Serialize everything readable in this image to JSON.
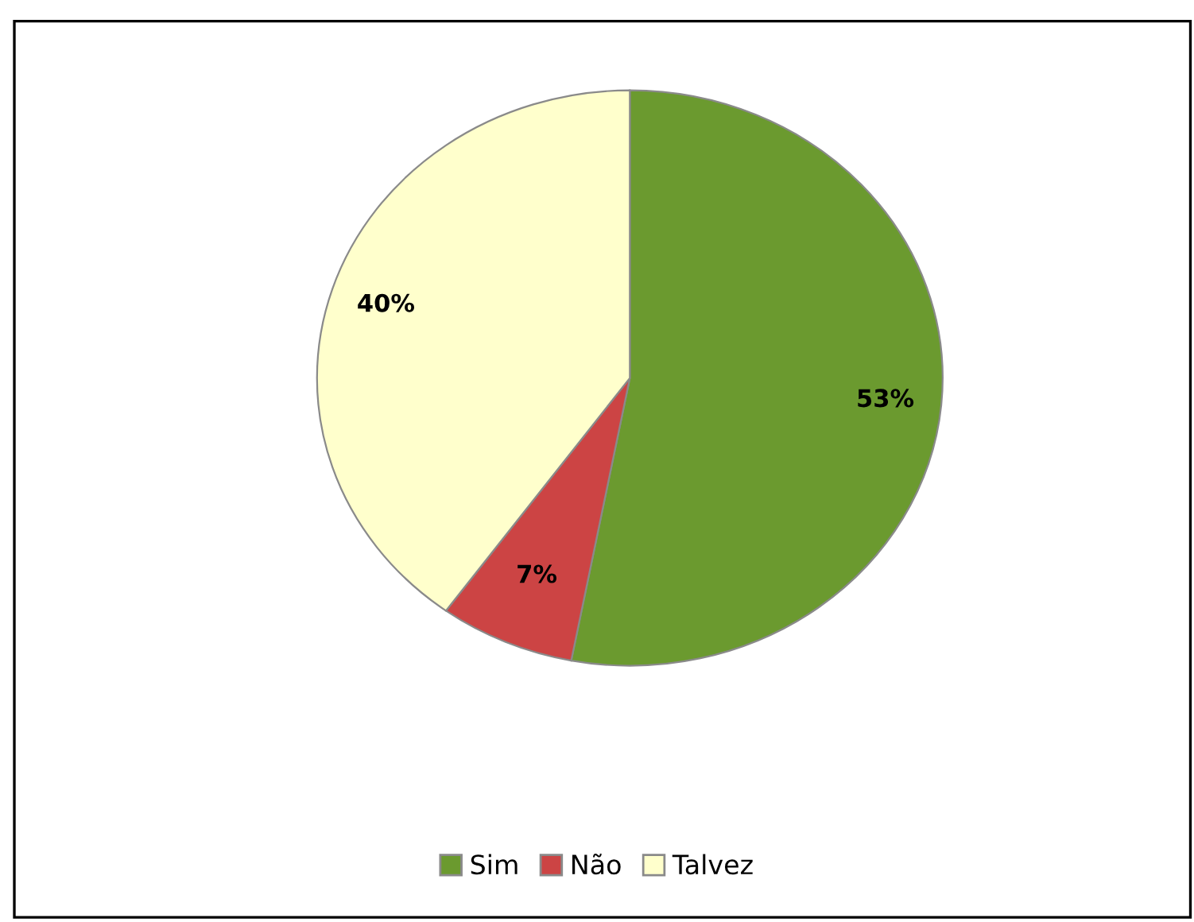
{
  "chart_data": {
    "type": "pie",
    "categories": [
      "Sim",
      "Não",
      "Talvez"
    ],
    "values": [
      53,
      7,
      40
    ],
    "colors": [
      "#6b9a2f",
      "#cc4444",
      "#ffffcc"
    ],
    "value_labels": [
      "53%",
      "7%",
      "40%"
    ],
    "legend": "bottom"
  }
}
